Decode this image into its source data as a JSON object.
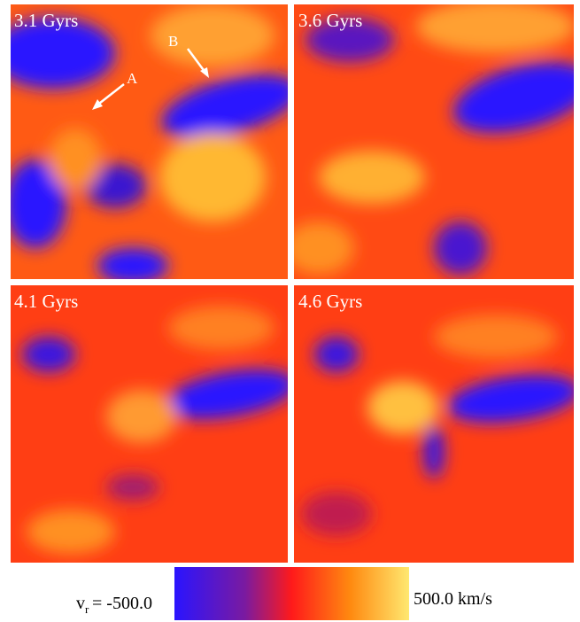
{
  "panels": [
    {
      "label": "3.1 Gyrs",
      "annotations": [
        "A",
        "B"
      ]
    },
    {
      "label": "3.6 Gyrs"
    },
    {
      "label": "4.1 Gyrs"
    },
    {
      "label": "4.6 Gyrs"
    }
  ],
  "colorbar": {
    "symbol": "v",
    "subscript": "r",
    "min_label": "= -500.0",
    "max_label": "500.0 km/s"
  }
}
